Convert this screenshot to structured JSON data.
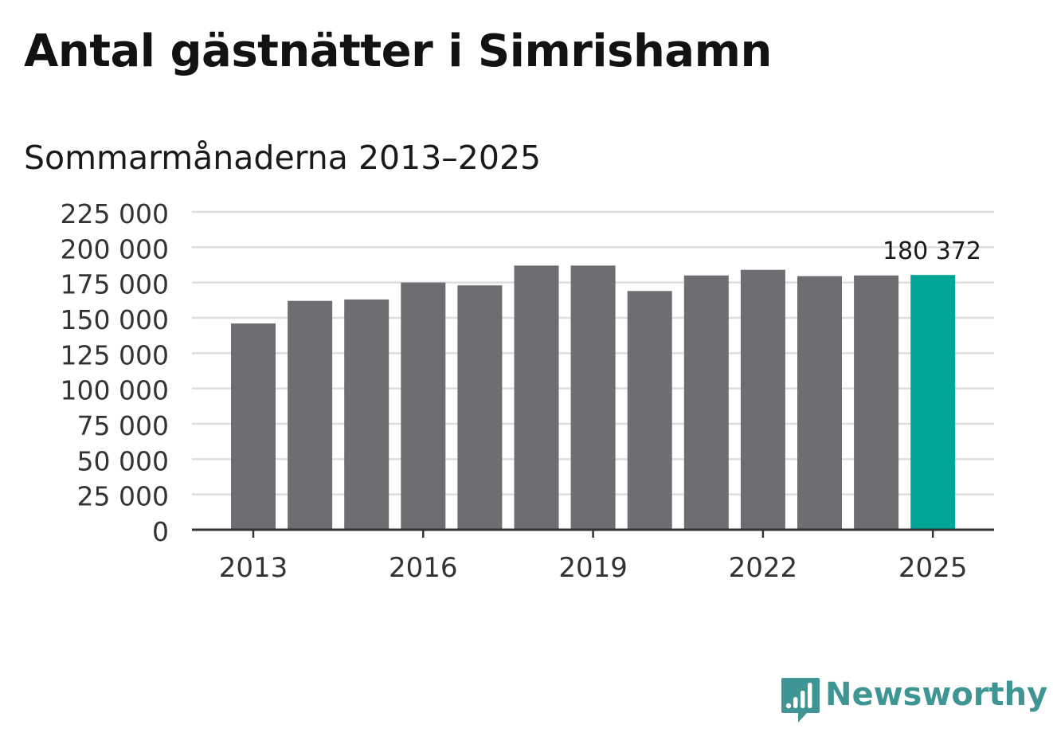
{
  "header": {
    "title": "Antal gästnätter i Simrishamn",
    "subtitle": "Sommarmånaderna 2013–2025"
  },
  "brand": {
    "name": "Newsworthy",
    "color": "#3e9594",
    "icon": "bar-chart-speech-bubble-icon"
  },
  "chart_data": {
    "type": "bar",
    "categories": [
      "2013",
      "2014",
      "2015",
      "2016",
      "2017",
      "2018",
      "2019",
      "2020",
      "2021",
      "2022",
      "2023",
      "2024",
      "2025"
    ],
    "values": [
      146000,
      162000,
      163000,
      175000,
      173000,
      187000,
      187000,
      169000,
      180000,
      184000,
      179500,
      180000,
      180372
    ],
    "x_tick_labels": [
      "2013",
      "2016",
      "2019",
      "2022",
      "2025"
    ],
    "y_tick_labels": [
      "0",
      "25 000",
      "50 000",
      "75 000",
      "100 000",
      "125 000",
      "150 000",
      "175 000",
      "200 000",
      "225 000"
    ],
    "y_ticks": [
      0,
      25000,
      50000,
      75000,
      100000,
      125000,
      150000,
      175000,
      200000,
      225000
    ],
    "ylim": [
      0,
      225000
    ],
    "grid": true,
    "highlight": {
      "category": "2025",
      "label": "180 372"
    },
    "colors": {
      "bar": "#6e6d72",
      "highlight": "#00a598",
      "grid": "#dddddd",
      "axis": "#333333"
    }
  }
}
